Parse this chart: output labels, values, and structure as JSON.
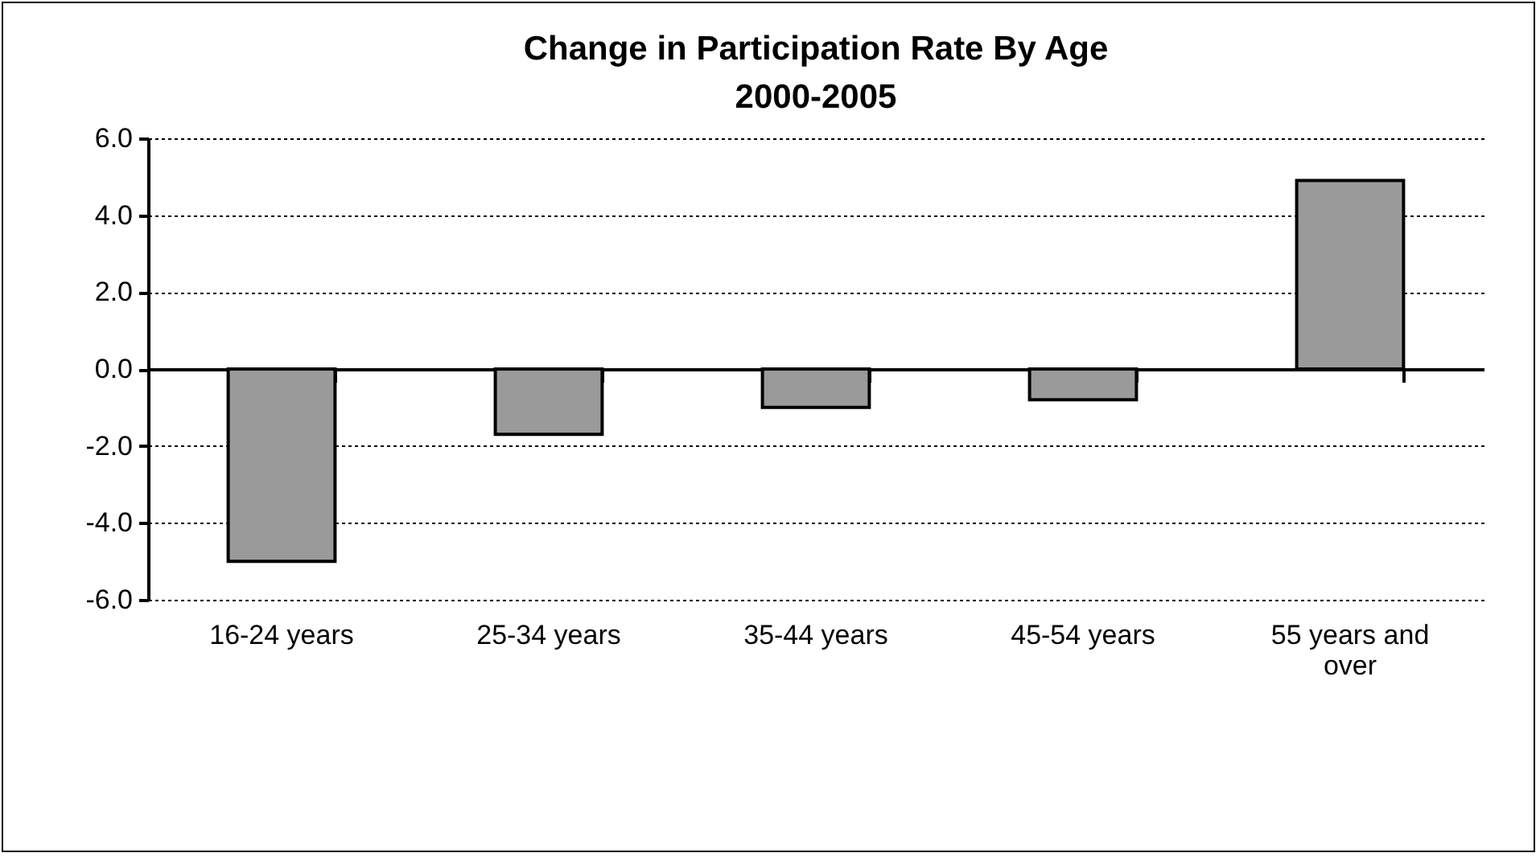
{
  "chart_data": {
    "type": "bar",
    "title": "Change in Participation Rate By Age\n2000-2005",
    "categories": [
      "16-24 years",
      "25-34 years",
      "35-44 years",
      "45-54 years",
      "55 years and over"
    ],
    "values": [
      -5.0,
      -1.7,
      -1.0,
      -0.8,
      4.9
    ],
    "color": "#9a9a9a",
    "ylim": [
      -6,
      6
    ],
    "yticks": [
      {
        "value": -6,
        "label": "-6.0"
      },
      {
        "value": -4,
        "label": "-4.0"
      },
      {
        "value": -2,
        "label": "-2.0"
      },
      {
        "value": 0,
        "label": "0.0"
      },
      {
        "value": 2,
        "label": "2.0"
      },
      {
        "value": 4,
        "label": "4.0"
      },
      {
        "value": 6,
        "label": "6.0"
      }
    ],
    "grid": "y"
  }
}
